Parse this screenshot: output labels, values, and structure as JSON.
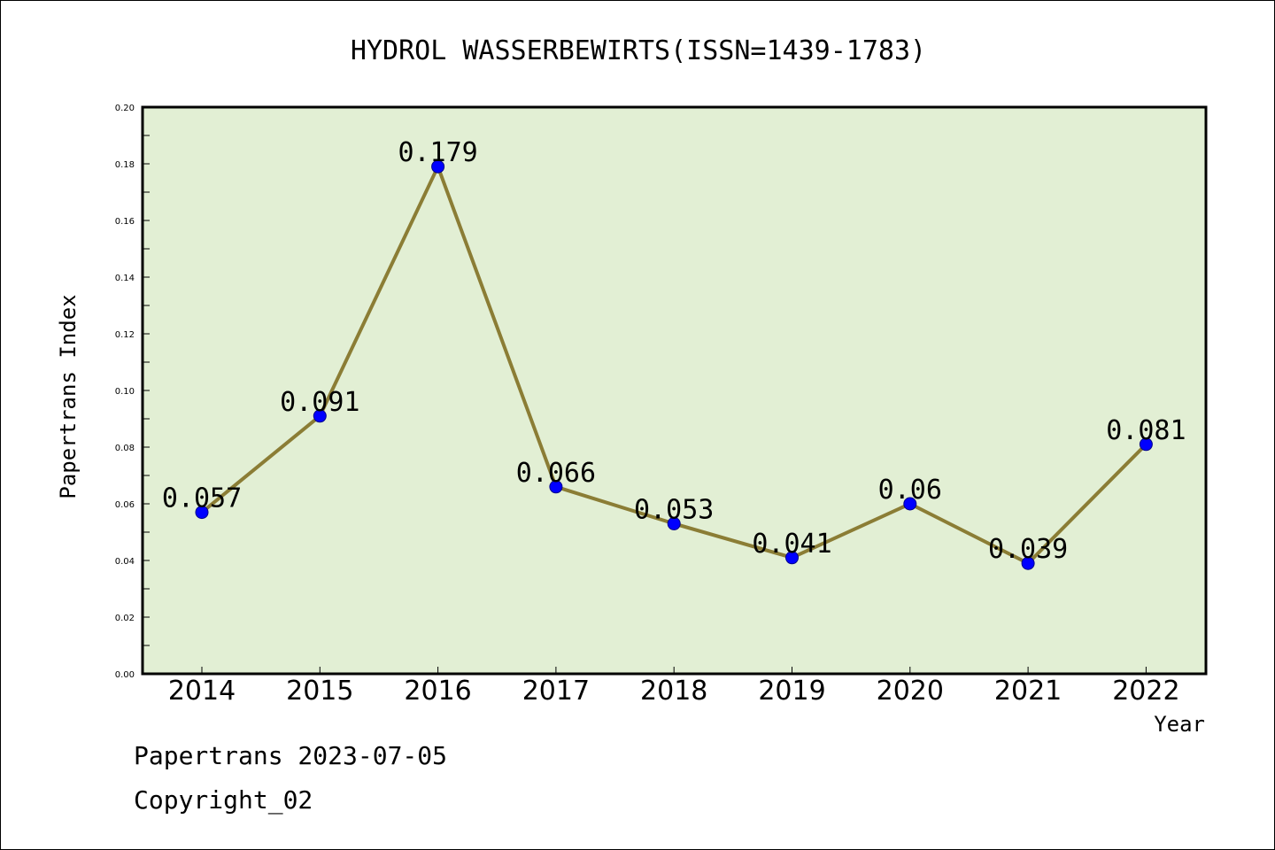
{
  "chart_data": {
    "type": "line",
    "title": "HYDROL WASSERBEWIRTS(ISSN=1439-1783)",
    "xlabel": "Year",
    "ylabel": "Papertrans Index",
    "categories": [
      "2014",
      "2015",
      "2016",
      "2017",
      "2018",
      "2019",
      "2020",
      "2021",
      "2022"
    ],
    "series": [
      {
        "values": [
          0.057,
          0.091,
          0.179,
          0.066,
          0.053,
          0.041,
          0.06,
          0.039,
          0.081
        ]
      }
    ],
    "data_labels": [
      "0.057",
      "0.091",
      "0.179",
      "0.066",
      "0.053",
      "0.041",
      "0.06",
      "0.039",
      "0.081"
    ],
    "ylim": [
      0,
      0.2
    ],
    "yticks": [
      "0.00",
      "0.02",
      "0.04",
      "0.06",
      "0.08",
      "0.10",
      "0.12",
      "0.14",
      "0.16",
      "0.18",
      "0.20"
    ],
    "grid": false,
    "colors": {
      "plot_background": "#e2efd4",
      "line": "#8b7d35",
      "marker": "#0000ff"
    }
  },
  "footer": {
    "line1": "Papertrans 2023-07-05",
    "line2": "Copyright_02"
  }
}
